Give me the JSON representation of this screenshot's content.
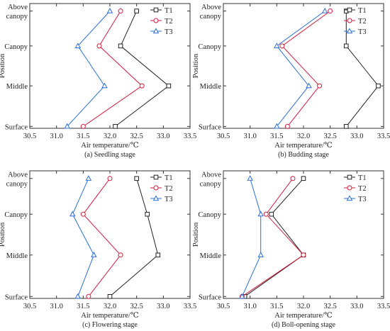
{
  "chart_data": [
    {
      "type": "line",
      "orientation": "horizontal-profile",
      "caption": "(a) Seedling stage",
      "xlabel": "Air temperature/℃",
      "ylabel": "Position",
      "xlim": [
        30.5,
        33.5
      ],
      "x_ticks": [
        "30.5",
        "31.0",
        "31.5",
        "32.0",
        "32.5",
        "33.0",
        "33.5"
      ],
      "y_categories": [
        [
          "Surface"
        ],
        [
          "Middle"
        ],
        [
          "Canopy"
        ],
        [
          "Above",
          "canopy"
        ]
      ],
      "legend_position": "top-right",
      "series": [
        {
          "name": "T1",
          "color": "#222222",
          "marker": "square",
          "values": [
            32.1,
            33.1,
            32.2,
            32.5
          ]
        },
        {
          "name": "T2",
          "color": "#d81b3c",
          "marker": "circle",
          "values": [
            31.5,
            32.6,
            31.8,
            32.2
          ]
        },
        {
          "name": "T3",
          "color": "#2a6fd8",
          "marker": "triangle",
          "values": [
            31.2,
            31.9,
            31.4,
            32.0
          ]
        }
      ]
    },
    {
      "type": "line",
      "orientation": "horizontal-profile",
      "caption": "(b) Budding stage",
      "xlabel": "Air temperature/℃",
      "ylabel": "Position",
      "xlim": [
        30.5,
        33.5
      ],
      "x_ticks": [
        "30.5",
        "31.0",
        "31.5",
        "32.0",
        "32.5",
        "33.0",
        "33.5"
      ],
      "y_categories": [
        [
          "Surface"
        ],
        [
          "Middle"
        ],
        [
          "Canopy"
        ],
        [
          "Above",
          "canopy"
        ]
      ],
      "legend_position": "top-right",
      "series": [
        {
          "name": "T1",
          "color": "#222222",
          "marker": "square",
          "values": [
            32.8,
            33.4,
            32.8,
            32.8
          ]
        },
        {
          "name": "T2",
          "color": "#d81b3c",
          "marker": "circle",
          "values": [
            31.7,
            32.3,
            31.6,
            32.5
          ]
        },
        {
          "name": "T3",
          "color": "#2a6fd8",
          "marker": "triangle",
          "values": [
            31.5,
            32.1,
            31.5,
            32.4
          ]
        }
      ]
    },
    {
      "type": "line",
      "orientation": "horizontal-profile",
      "caption": "(c) Flowering stage",
      "xlabel": "Air temperature/℃",
      "ylabel": "Position",
      "xlim": [
        30.5,
        33.5
      ],
      "x_ticks": [
        "30.5",
        "31.0",
        "31.5",
        "32.0",
        "32.5",
        "33.0",
        "33.5"
      ],
      "y_categories": [
        [
          "Surface"
        ],
        [
          "Middle"
        ],
        [
          "Canopy"
        ],
        [
          "Above",
          "canopy"
        ]
      ],
      "legend_position": "top-right",
      "series": [
        {
          "name": "T1",
          "color": "#222222",
          "marker": "square",
          "values": [
            32.0,
            32.9,
            32.7,
            32.5
          ]
        },
        {
          "name": "T2",
          "color": "#d81b3c",
          "marker": "circle",
          "values": [
            31.6,
            32.2,
            31.5,
            32.0
          ]
        },
        {
          "name": "T3",
          "color": "#2a6fd8",
          "marker": "triangle",
          "values": [
            31.4,
            31.7,
            31.3,
            31.6
          ]
        }
      ]
    },
    {
      "type": "line",
      "orientation": "horizontal-profile",
      "caption": "(d) Boll-opening stage",
      "xlabel": "Air temperature/℃",
      "ylabel": "Position",
      "xlim": [
        30.5,
        33.5
      ],
      "x_ticks": [
        "30.5",
        "31.0",
        "31.5",
        "32.0",
        "32.5",
        "33.0",
        "33.5"
      ],
      "y_categories": [
        [
          "Surface"
        ],
        [
          "Middle"
        ],
        [
          "Canopy"
        ],
        [
          "Above",
          "canopy"
        ]
      ],
      "legend_position": "top-right",
      "series": [
        {
          "name": "T1",
          "color": "#222222",
          "marker": "square",
          "values": [
            30.9,
            32.0,
            31.4,
            32.0
          ]
        },
        {
          "name": "T2",
          "color": "#d81b3c",
          "marker": "circle",
          "values": [
            30.85,
            32.0,
            31.3,
            31.8
          ]
        },
        {
          "name": "T3",
          "color": "#2a6fd8",
          "marker": "triangle",
          "values": [
            30.85,
            31.2,
            31.2,
            31.0
          ]
        }
      ]
    }
  ]
}
